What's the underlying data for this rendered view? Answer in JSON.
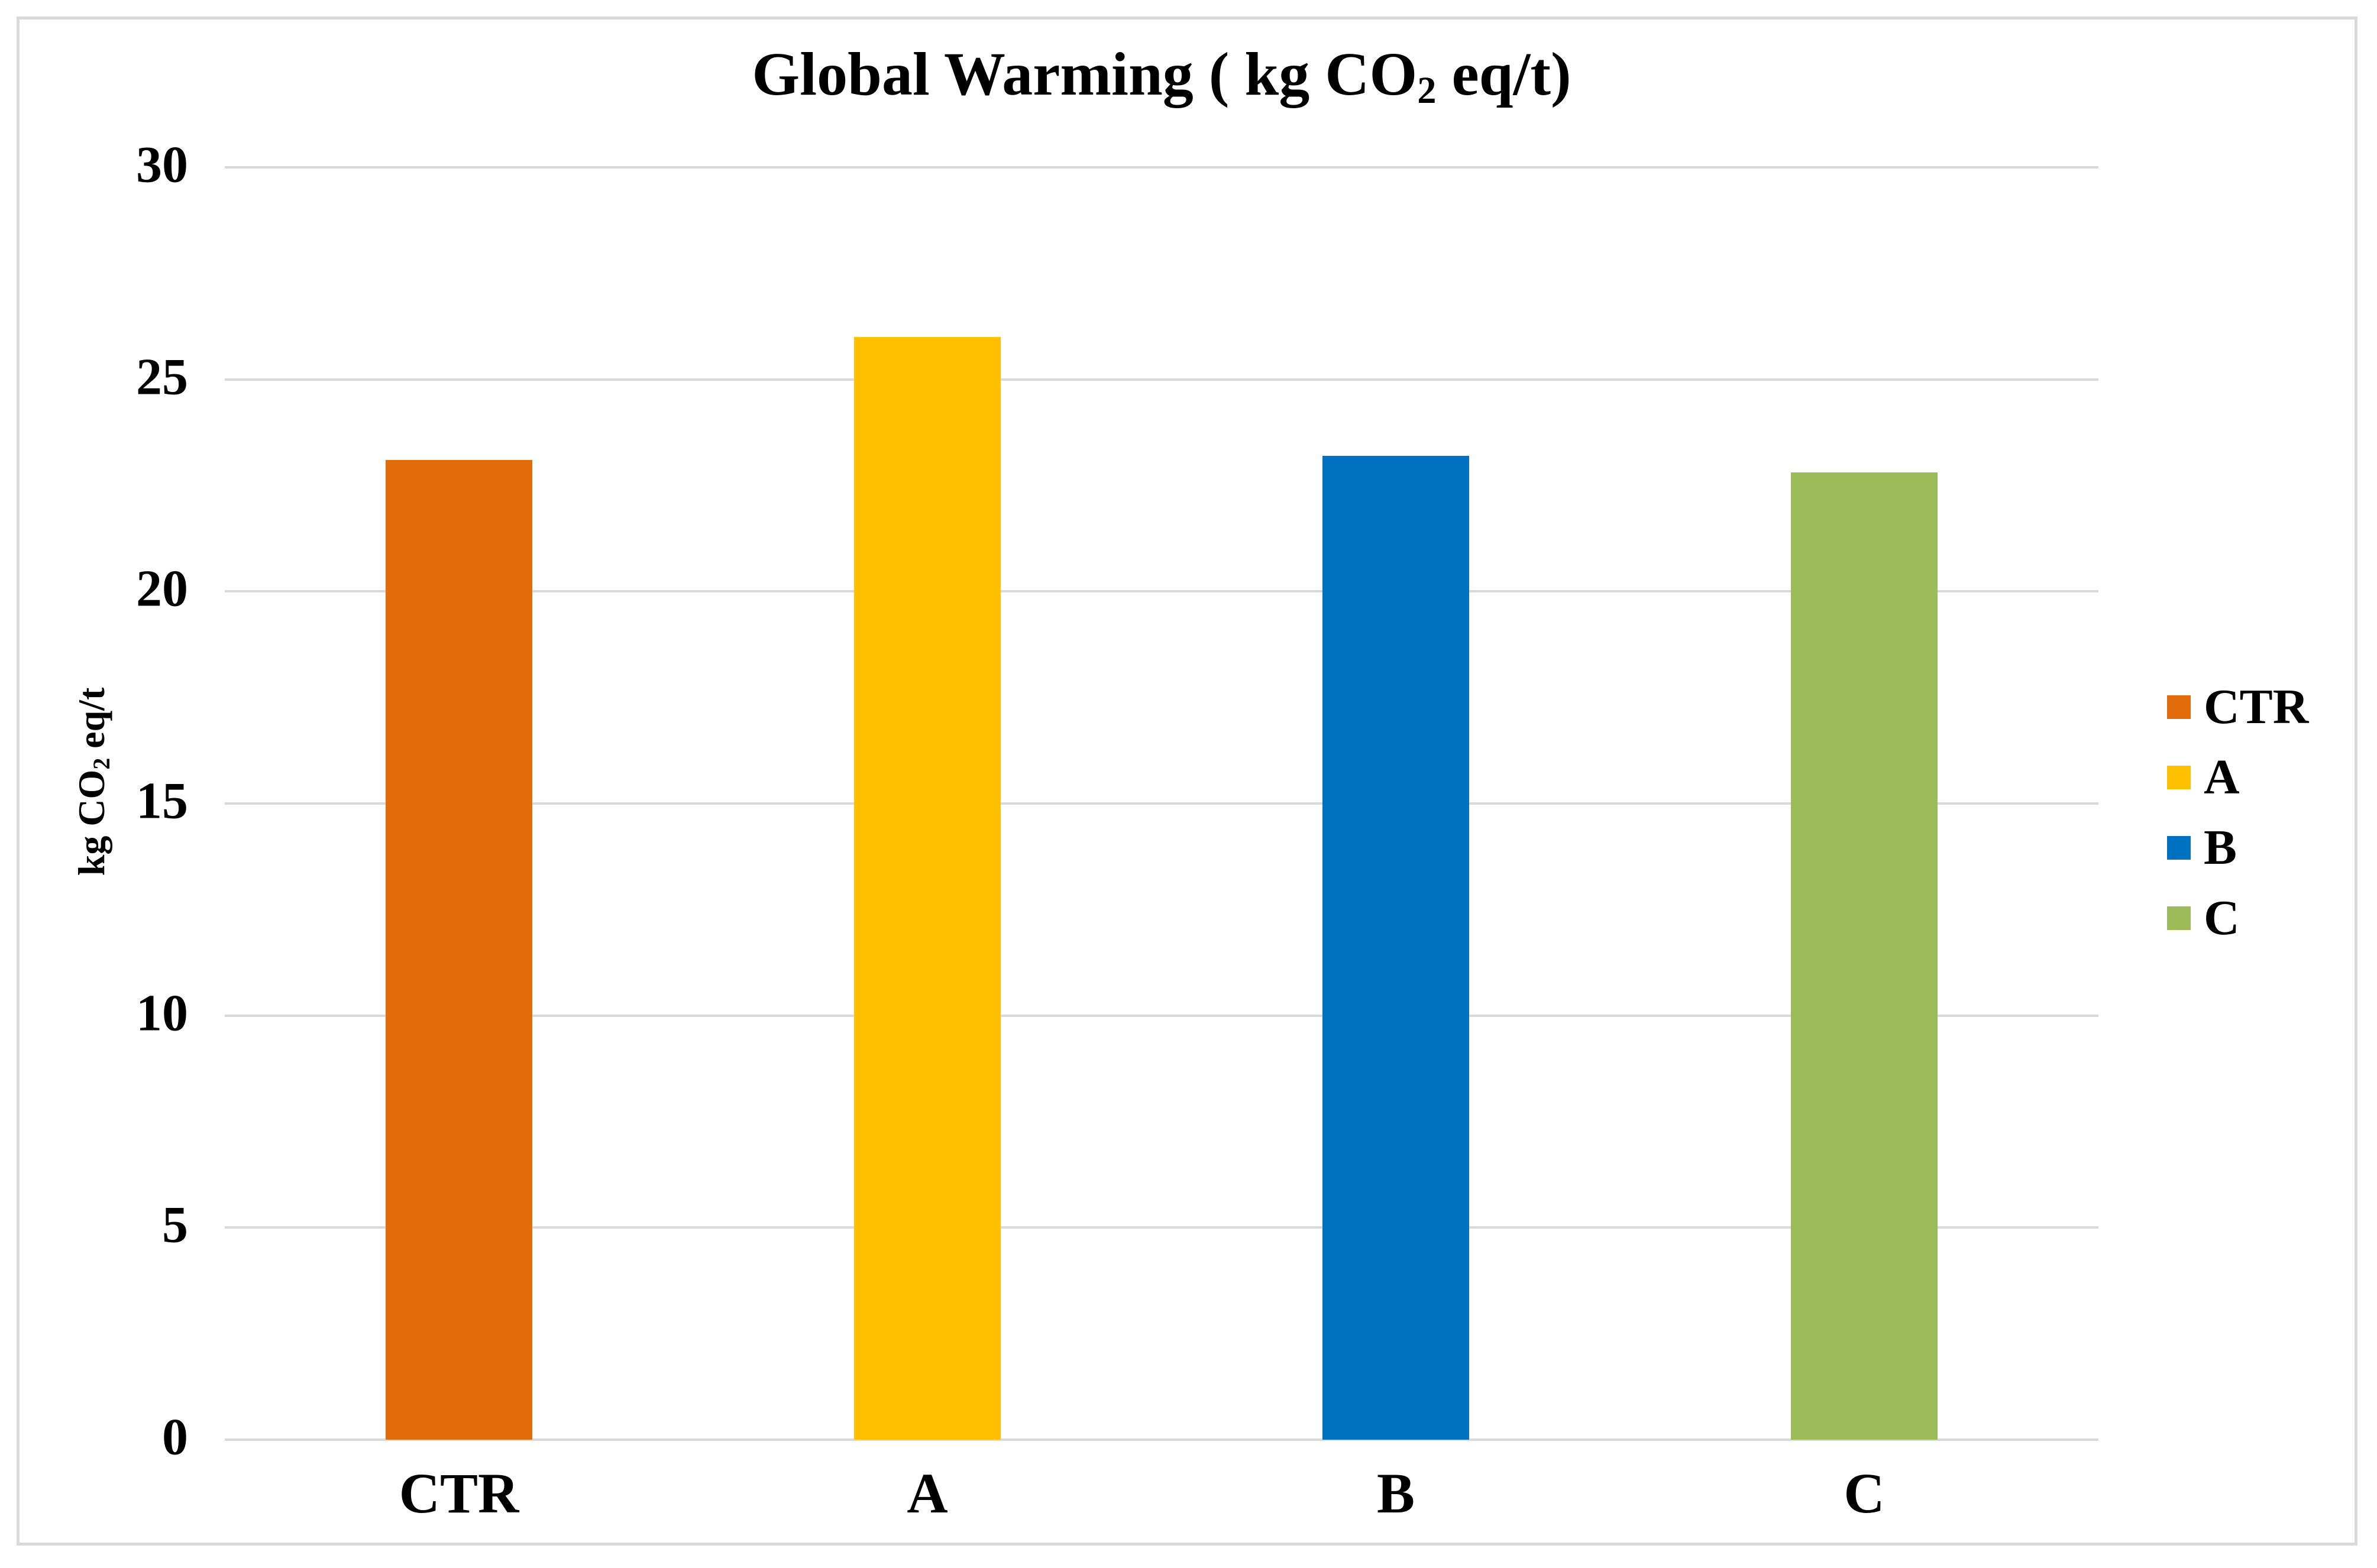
{
  "chart_data": {
    "type": "bar",
    "title": "Global Warming ( kg CO2 eq/t)",
    "title_parts": {
      "prefix": "Global Warming ( kg CO",
      "sub": "2",
      "suffix": " eq/t)"
    },
    "categories": [
      "CTR",
      "A",
      "B",
      "C"
    ],
    "values": [
      23.1,
      26,
      23.2,
      22.8
    ],
    "bar_colors": [
      "#E36C0A",
      "#FFC000",
      "#0070C0",
      "#9BBB59"
    ],
    "xlabel": "",
    "ylabel": "kg CO2 eq/t",
    "ylabel_parts": {
      "prefix": "kg CO",
      "sub": "2",
      "suffix": " eq/t"
    },
    "ylim": [
      0,
      30
    ],
    "yticks": [
      0,
      5,
      10,
      15,
      20,
      25,
      30
    ],
    "grid": true,
    "gridline_color": "#D9D9D9",
    "figure_border_color": "#D9D9D9",
    "text_color": "#000000",
    "legend": {
      "position": "right",
      "entries": [
        {
          "label": "CTR",
          "color": "#E36C0A"
        },
        {
          "label": "A",
          "color": "#FFC000"
        },
        {
          "label": "B",
          "color": "#0070C0"
        },
        {
          "label": "C",
          "color": "#9BBB59"
        }
      ]
    }
  }
}
